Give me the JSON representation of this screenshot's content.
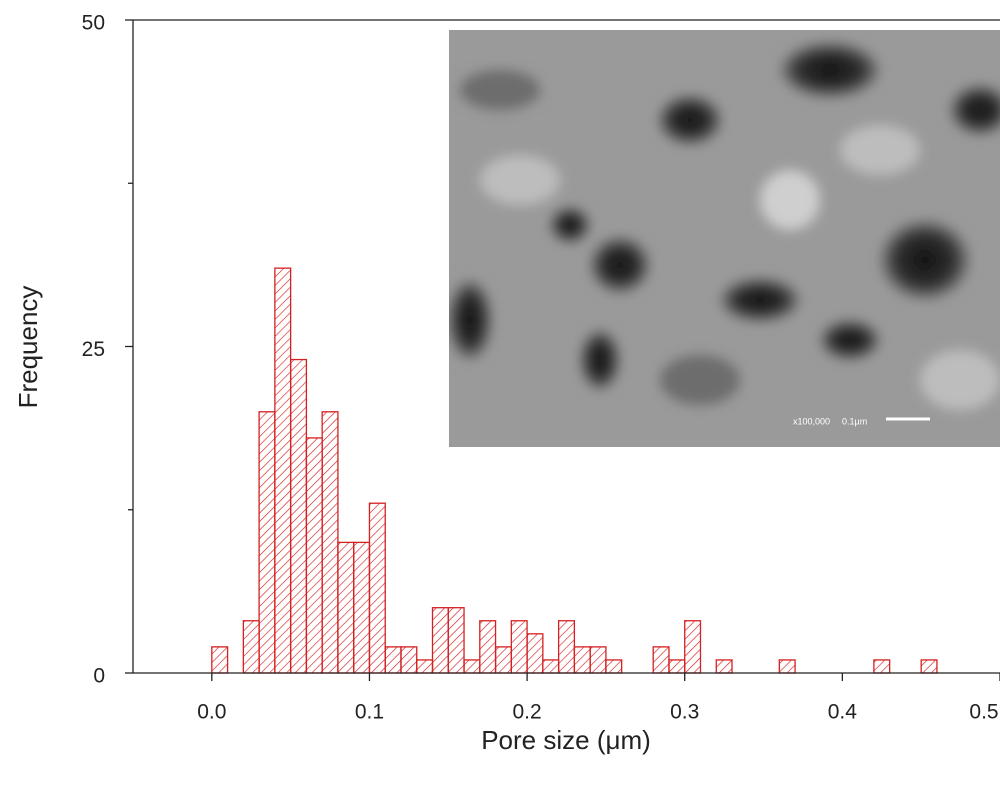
{
  "chart_data": {
    "type": "histogram",
    "x_label": "Pore size (μm)",
    "y_label": "Frequency",
    "bins": [
      0,
      0.01,
      0.02,
      0.03,
      0.04,
      0.05,
      0.06,
      0.07,
      0.08,
      0.09,
      0.1,
      0.11,
      0.12,
      0.13,
      0.14,
      0.15,
      0.16,
      0.17,
      0.18,
      0.19,
      0.2,
      0.21,
      0.22,
      0.23,
      0.24,
      0.25,
      0.26,
      0.27,
      0.28,
      0.29,
      0.3,
      0.31,
      0.32,
      0.33,
      0.34,
      0.35,
      0.36,
      0.37,
      0.38,
      0.39,
      0.4,
      0.41,
      0.42,
      0.43,
      0.44,
      0.45,
      0.46,
      0.47
    ],
    "counts": [
      2,
      0,
      4,
      20,
      31,
      24,
      18,
      20,
      10,
      10,
      13,
      2,
      2,
      1,
      5,
      5,
      1,
      4,
      2,
      4,
      3,
      1,
      4,
      2,
      2,
      1,
      0,
      0,
      2,
      1,
      4,
      0,
      1,
      0,
      0,
      0,
      1,
      0,
      0,
      0,
      0,
      0,
      1,
      0,
      0,
      1,
      0
    ],
    "color": "#d42020",
    "hatch": true,
    "xlim": [
      -0.05,
      0.5
    ],
    "xticks": [
      {
        "value": 0,
        "label": "0.0"
      },
      0.1,
      0.2,
      0.3,
      0.4,
      0.5
    ],
    "ylim": [
      0,
      50
    ],
    "yticks": [
      0,
      25,
      50
    ],
    "yminor_ticks": [
      12.5,
      37.5
    ],
    "inset_labels": [
      "x100,000",
      "0.1μm"
    ]
  }
}
